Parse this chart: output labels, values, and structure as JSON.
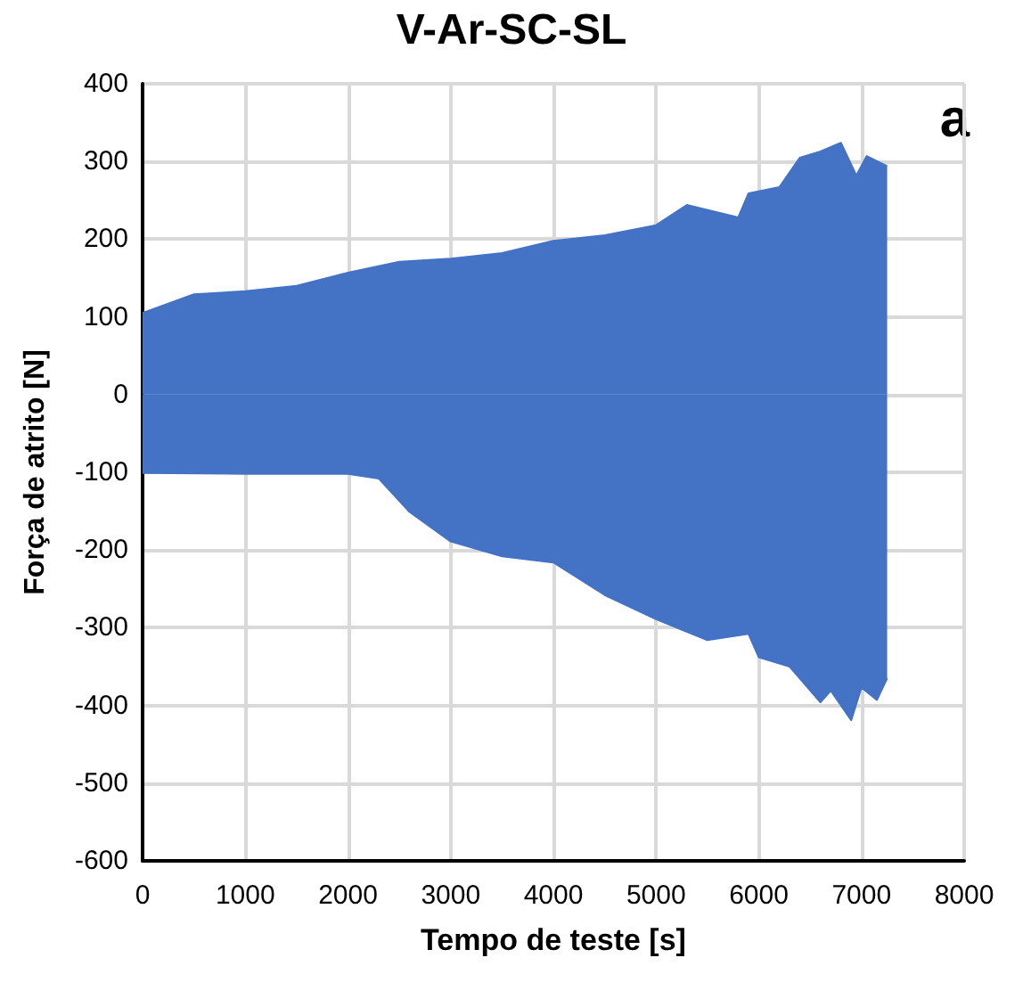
{
  "chart_data": {
    "type": "area",
    "title": "V-Ar-SC-SL",
    "xlabel": "Tempo de teste [s]",
    "ylabel": "Força de atrito [N]",
    "annotations": [
      "a"
    ],
    "series": [
      {
        "color": "#4472c4",
        "x": [
          0,
          500,
          1000,
          1500,
          2000,
          2500,
          3000,
          3500,
          4000,
          4500,
          5000,
          5300,
          5800,
          5900,
          6200,
          6400,
          6600,
          6800,
          6950,
          7050,
          7250
        ],
        "values": [
          105,
          129,
          133,
          140,
          157,
          171,
          175,
          182,
          198,
          205,
          218,
          244,
          228,
          259,
          267,
          305,
          313,
          324,
          282,
          307,
          294
        ]
      },
      {
        "color": "#4472c4",
        "x": [
          0,
          1000,
          2000,
          2300,
          2600,
          3000,
          3500,
          4000,
          4500,
          5000,
          5500,
          5900,
          6000,
          6300,
          6600,
          6700,
          6900,
          7000,
          7150,
          7250
        ],
        "values": [
          -101,
          -102,
          -102,
          -108,
          -151,
          -189,
          -208,
          -216,
          -258,
          -289,
          -316,
          -308,
          -338,
          -350,
          -396,
          -381,
          -419,
          -377,
          -393,
          -365
        ]
      }
    ],
    "xlim": [
      0,
      8000
    ],
    "xticks": [
      0,
      1000,
      2000,
      3000,
      4000,
      5000,
      6000,
      7000,
      8000
    ],
    "ylim": [
      -600,
      400
    ],
    "yticks": [
      -600,
      -500,
      -400,
      -300,
      -200,
      -100,
      0,
      100,
      200,
      300,
      400
    ],
    "grid": true
  }
}
